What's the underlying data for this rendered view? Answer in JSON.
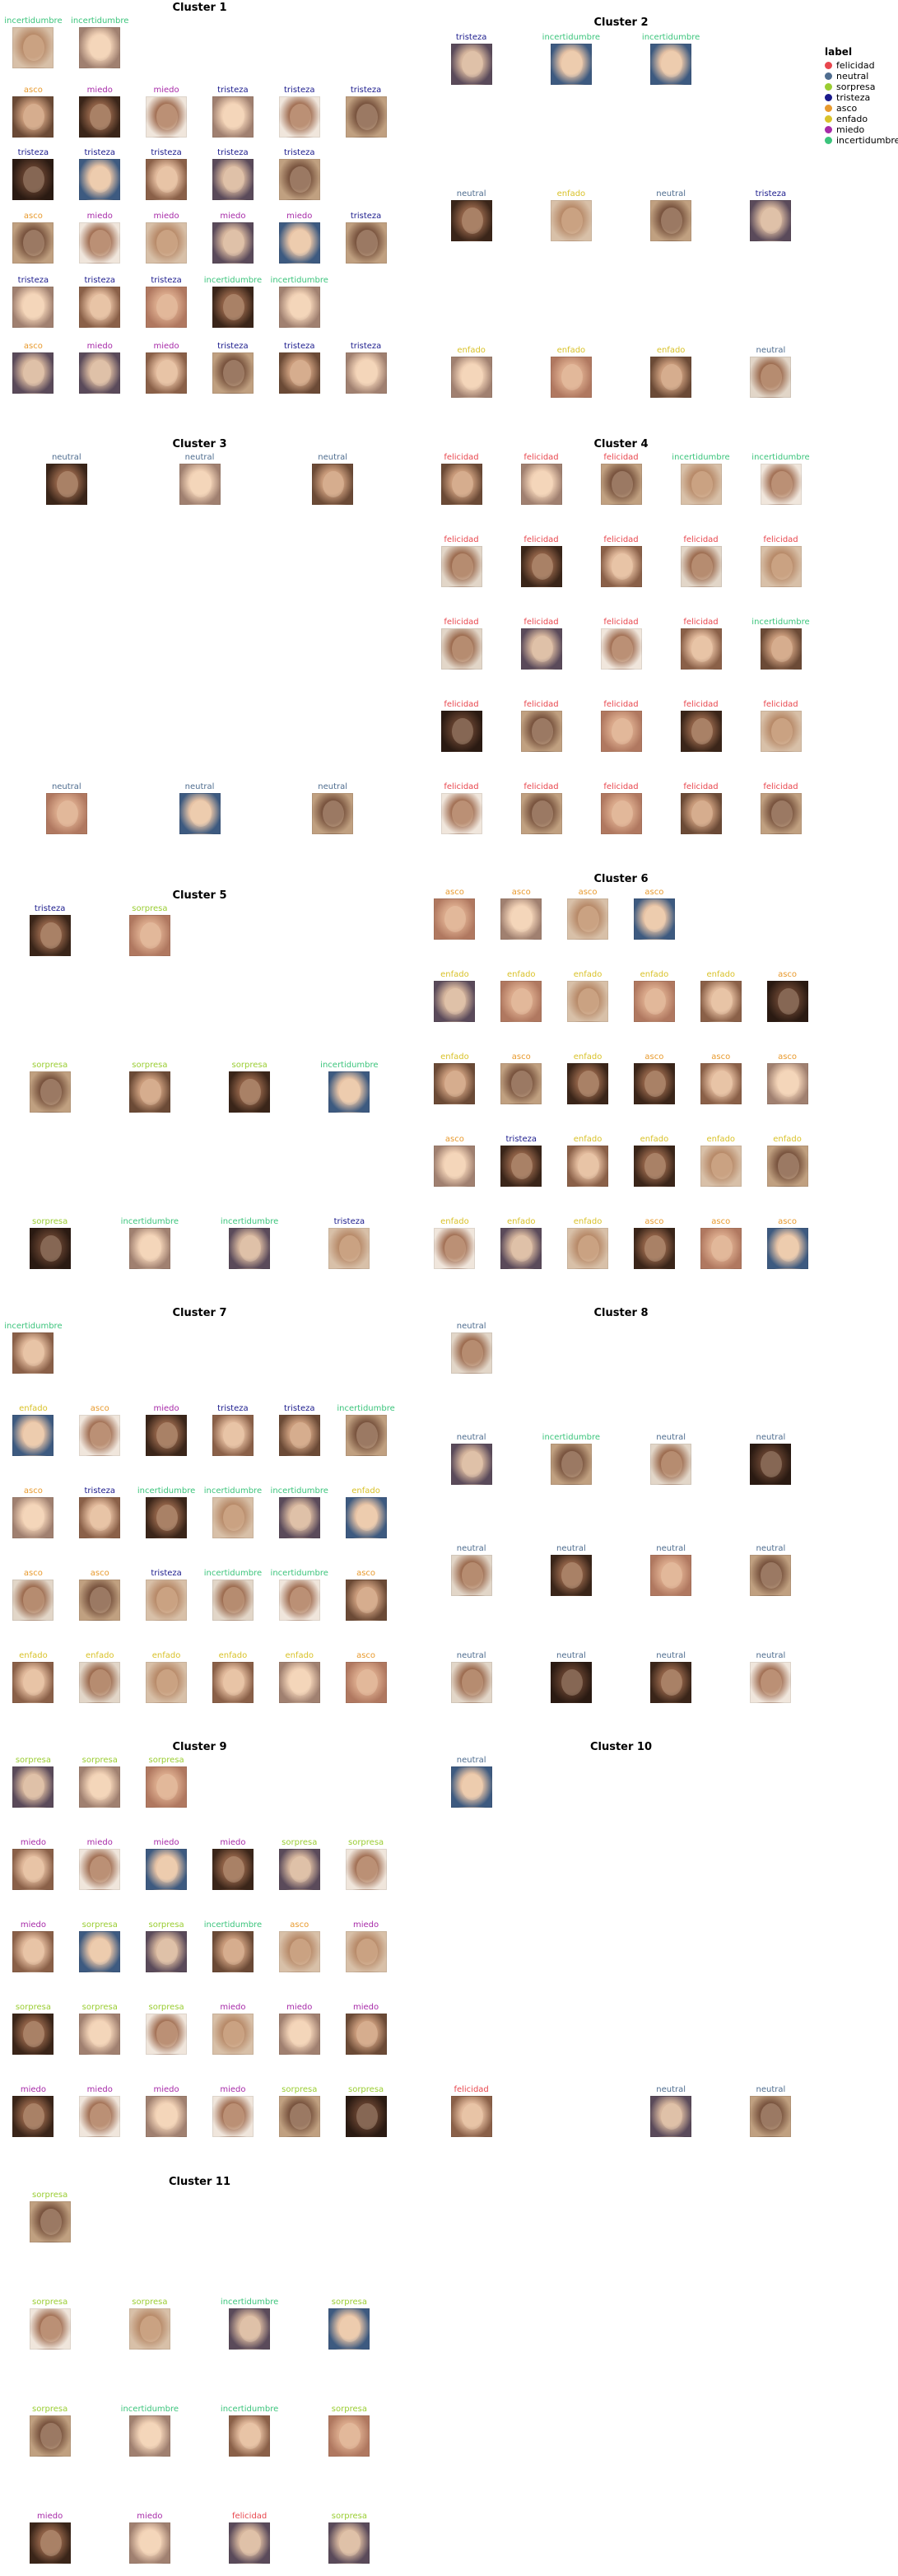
{
  "colors": {
    "felicidad": "#e8474e",
    "neutral": "#4f6d8f",
    "sorpresa": "#9acd32",
    "tristeza": "#1a1a8c",
    "asco": "#e89a2e",
    "enfado": "#d9c22a",
    "miedo": "#a72aa8",
    "incertidumbre": "#3cc47c"
  },
  "legend": {
    "title": "label",
    "items": [
      "felicidad",
      "neutral",
      "sorpresa",
      "tristeza",
      "asco",
      "enfado",
      "miedo",
      "incertidumbre"
    ]
  },
  "clusters": [
    {
      "title": "Cluster 1",
      "rows": [
        [
          "incertidumbre",
          "incertidumbre",
          null,
          null,
          null,
          null
        ],
        [
          "asco",
          "miedo",
          "miedo",
          "tristeza",
          "tristeza",
          "tristeza"
        ],
        [
          "tristeza",
          "tristeza",
          "tristeza",
          "tristeza",
          "tristeza",
          null
        ],
        [
          "asco",
          "miedo",
          "miedo",
          "miedo",
          "miedo",
          "tristeza"
        ],
        [
          "tristeza",
          "tristeza",
          "tristeza",
          "incertidumbre",
          "incertidumbre",
          null
        ],
        [
          "asco",
          "miedo",
          "miedo",
          "tristeza",
          "tristeza",
          "tristeza"
        ]
      ]
    },
    {
      "title": "Cluster 2",
      "rows": [
        [
          "tristeza",
          "incertidumbre",
          "incertidumbre",
          null
        ],
        [
          "neutral",
          "enfado",
          "neutral",
          "tristeza"
        ],
        [
          "enfado",
          "enfado",
          "enfado",
          "neutral"
        ]
      ]
    },
    {
      "title": "Cluster 3",
      "rows": [
        [
          "neutral",
          "neutral",
          "neutral"
        ],
        [
          null,
          null,
          null
        ],
        [
          null,
          null,
          null
        ],
        [
          null,
          null,
          null
        ],
        [
          "neutral",
          "neutral",
          "neutral"
        ]
      ]
    },
    {
      "title": "Cluster 4",
      "rows": [
        [
          "felicidad",
          "felicidad",
          "felicidad",
          "incertidumbre",
          "incertidumbre"
        ],
        [
          "felicidad",
          "felicidad",
          "felicidad",
          "felicidad",
          "felicidad"
        ],
        [
          "felicidad",
          "felicidad",
          "felicidad",
          "felicidad",
          "incertidumbre"
        ],
        [
          "felicidad",
          "felicidad",
          "felicidad",
          "felicidad",
          "felicidad"
        ],
        [
          "felicidad",
          "felicidad",
          "felicidad",
          "felicidad",
          "felicidad"
        ]
      ]
    },
    {
      "title": "Cluster 5",
      "rows": [
        [
          "tristeza",
          "sorpresa",
          null,
          null
        ],
        [
          "sorpresa",
          "sorpresa",
          "sorpresa",
          "incertidumbre"
        ],
        [
          "sorpresa",
          "incertidumbre",
          "incertidumbre",
          "tristeza"
        ]
      ]
    },
    {
      "title": "Cluster 6",
      "rows": [
        [
          "asco",
          "asco",
          "asco",
          "asco",
          null,
          null
        ],
        [
          "enfado",
          "enfado",
          "enfado",
          "enfado",
          "enfado",
          "asco"
        ],
        [
          "enfado",
          "asco",
          "enfado",
          "asco",
          "asco",
          "asco"
        ],
        [
          "asco",
          "tristeza",
          "enfado",
          "enfado",
          "enfado",
          "enfado"
        ],
        [
          "enfado",
          "enfado",
          "enfado",
          "asco",
          "asco",
          "asco"
        ]
      ]
    },
    {
      "title": "Cluster 7",
      "rows": [
        [
          "incertidumbre",
          null,
          null,
          null,
          null,
          null
        ],
        [
          "enfado",
          "asco",
          "miedo",
          "tristeza",
          "tristeza",
          "incertidumbre"
        ],
        [
          "asco",
          "tristeza",
          "incertidumbre",
          "incertidumbre",
          "incertidumbre",
          "enfado"
        ],
        [
          "asco",
          "asco",
          "tristeza",
          "incertidumbre",
          "incertidumbre",
          "asco"
        ],
        [
          "enfado",
          "enfado",
          "enfado",
          "enfado",
          "enfado",
          "asco"
        ]
      ]
    },
    {
      "title": "Cluster 8",
      "rows": [
        [
          "neutral",
          null,
          null,
          null
        ],
        [
          "neutral",
          "incertidumbre",
          "neutral",
          "neutral"
        ],
        [
          "neutral",
          "neutral",
          "neutral",
          "neutral"
        ],
        [
          "neutral",
          "neutral",
          "neutral",
          "neutral"
        ]
      ]
    },
    {
      "title": "Cluster 9",
      "rows": [
        [
          "sorpresa",
          "sorpresa",
          "sorpresa",
          null,
          null,
          null
        ],
        [
          "miedo",
          "miedo",
          "miedo",
          "miedo",
          "sorpresa",
          "sorpresa"
        ],
        [
          "miedo",
          "sorpresa",
          "sorpresa",
          "incertidumbre",
          "asco",
          "miedo"
        ],
        [
          "sorpresa",
          "sorpresa",
          "sorpresa",
          "miedo",
          "miedo",
          "miedo"
        ],
        [
          "miedo",
          "miedo",
          "miedo",
          "miedo",
          "sorpresa",
          "sorpresa"
        ]
      ]
    },
    {
      "title": "Cluster 10",
      "rows": [
        [
          "neutral",
          null,
          null,
          null
        ],
        [
          null,
          null,
          null,
          null
        ],
        [
          null,
          null,
          null,
          null
        ],
        [
          null,
          null,
          null,
          null
        ],
        [
          "felicidad",
          null,
          "neutral",
          "neutral"
        ]
      ]
    },
    {
      "title": "Cluster 11",
      "rows": [
        [
          "sorpresa",
          null,
          null,
          null
        ],
        [
          "sorpresa",
          "sorpresa",
          "incertidumbre",
          "sorpresa"
        ],
        [
          "sorpresa",
          "incertidumbre",
          "incertidumbre",
          "sorpresa"
        ],
        [
          "miedo",
          "miedo",
          "felicidad",
          "sorpresa"
        ]
      ]
    }
  ]
}
